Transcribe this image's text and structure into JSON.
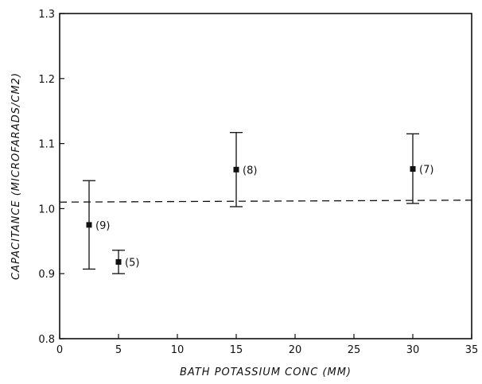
{
  "chart_data": {
    "type": "scatter",
    "title": "",
    "xlabel": "BATH POTASSIUM CONC (MM)",
    "ylabel": "CAPACITANCE (MICROFARADS/CM2)",
    "xlim": [
      0,
      35
    ],
    "ylim": [
      0.8,
      1.3
    ],
    "xticks": [
      0,
      5,
      10,
      15,
      20,
      25,
      30,
      35
    ],
    "xtick_labels": [
      "0",
      "5",
      "10",
      "15",
      "20",
      "25",
      "30",
      "35"
    ],
    "yticks": [
      0.8,
      0.9,
      1.0,
      1.1,
      1.2,
      1.3
    ],
    "ytick_labels": [
      "0.8",
      "0.9",
      "1.0",
      "1.1",
      "1.2",
      "1.3"
    ],
    "grid": false,
    "points": [
      {
        "x": 2.5,
        "y": 0.975,
        "err_low": 0.907,
        "err_high": 1.043,
        "label": "(9)"
      },
      {
        "x": 5,
        "y": 0.918,
        "err_low": 0.9,
        "err_high": 0.936,
        "label": "(5)"
      },
      {
        "x": 15,
        "y": 1.06,
        "err_low": 1.003,
        "err_high": 1.117,
        "label": "(8)"
      },
      {
        "x": 30,
        "y": 1.061,
        "err_low": 1.008,
        "err_high": 1.115,
        "label": "(7)"
      }
    ],
    "reference_line": {
      "style": "dashed",
      "x": [
        0,
        35
      ],
      "y": [
        1.01,
        1.013
      ]
    }
  }
}
